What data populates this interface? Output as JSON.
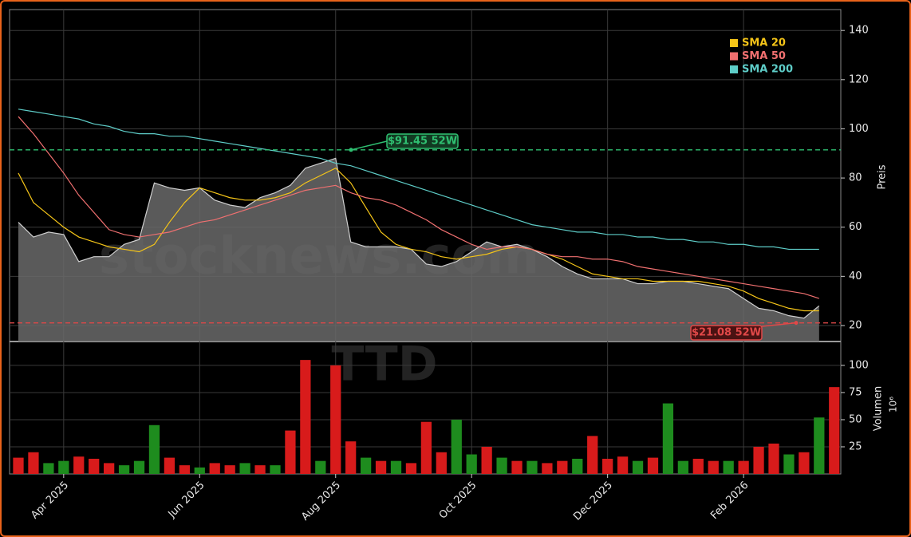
{
  "chart_data": {
    "type": "area",
    "categories": [
      null,
      null,
      null,
      "Apr 2025",
      null,
      null,
      null,
      null,
      null,
      null,
      null,
      null,
      "Jun 2025",
      null,
      null,
      null,
      null,
      null,
      null,
      null,
      null,
      "Aug 2025",
      null,
      null,
      null,
      null,
      null,
      null,
      null,
      null,
      "Oct 2025",
      null,
      null,
      null,
      null,
      null,
      null,
      null,
      null,
      "Dec 2025",
      null,
      null,
      null,
      null,
      null,
      null,
      null,
      null,
      "Feb 2026",
      null,
      null,
      null,
      null,
      null,
      null
    ],
    "values": [
      62,
      56,
      58,
      57,
      46,
      48,
      48,
      53,
      55,
      78,
      76,
      75,
      76,
      71,
      69,
      68,
      72,
      74,
      77,
      84,
      86,
      88,
      54,
      52,
      52,
      52,
      51,
      45,
      44,
      46,
      50,
      54,
      52,
      53,
      51,
      48,
      44,
      41,
      39,
      39,
      39,
      37,
      37,
      38,
      38,
      37,
      36,
      35,
      31,
      27,
      26,
      24,
      23,
      28,
      null
    ],
    "color": "#6a6a6a",
    "series": [
      {
        "name": "SMA 20",
        "color": "#f5c518",
        "values": [
          82,
          70,
          65,
          60,
          56,
          54,
          52,
          51,
          50,
          53,
          62,
          70,
          76,
          74,
          72,
          71,
          71,
          72,
          74,
          78,
          81,
          84,
          78,
          68,
          58,
          53,
          51,
          50,
          48,
          47,
          48,
          49,
          51,
          52,
          51,
          49,
          47,
          44,
          41,
          40,
          39,
          39,
          38,
          38,
          38,
          38,
          37,
          36,
          34,
          31,
          29,
          27,
          26,
          26,
          null
        ]
      },
      {
        "name": "SMA 50",
        "color": "#f07070",
        "values": [
          105,
          98,
          90,
          82,
          73,
          66,
          59,
          57,
          56,
          57,
          58,
          60,
          62,
          63,
          65,
          67,
          69,
          71,
          73,
          75,
          76,
          77,
          74,
          72,
          71,
          69,
          66,
          63,
          59,
          56,
          53,
          51,
          52,
          52,
          51,
          49,
          48,
          48,
          47,
          47,
          46,
          44,
          43,
          42,
          41,
          40,
          39,
          38,
          37,
          36,
          35,
          34,
          33,
          31,
          null
        ]
      },
      {
        "name": "SMA 200",
        "color": "#5ecdc8",
        "values": [
          108,
          107,
          106,
          105,
          104,
          102,
          101,
          99,
          98,
          98,
          97,
          97,
          96,
          95,
          94,
          93,
          92,
          91,
          90,
          89,
          88,
          86,
          85,
          83,
          81,
          79,
          77,
          75,
          73,
          71,
          69,
          67,
          65,
          63,
          61,
          60,
          59,
          58,
          58,
          57,
          57,
          56,
          56,
          55,
          55,
          54,
          54,
          53,
          53,
          52,
          52,
          51,
          51,
          51,
          null
        ]
      }
    ],
    "ylim": [
      13.5,
      148.5
    ],
    "yticks": [
      20,
      40,
      60,
      80,
      100,
      120,
      140
    ],
    "y_label": "Preis",
    "grid": true,
    "legend": "upper-right",
    "reference_lines": [
      {
        "value": 91.45,
        "label": "$91.45 52W",
        "color": "#2fbf71"
      },
      {
        "value": 21.08,
        "label": "$21.08 52W",
        "color": "#e04848"
      }
    ],
    "watermarks": [
      "stocknews.com",
      "TTD"
    ],
    "volume": {
      "values": [
        15,
        20,
        10,
        12,
        16,
        14,
        10,
        8,
        12,
        45,
        15,
        8,
        6,
        10,
        8,
        10,
        8,
        8,
        40,
        105,
        12,
        100,
        30,
        15,
        12,
        12,
        10,
        48,
        20,
        50,
        18,
        25,
        15,
        12,
        12,
        10,
        12,
        14,
        35,
        14,
        16,
        12,
        15,
        65,
        12,
        14,
        12,
        12,
        12,
        25,
        28,
        18,
        20,
        52,
        80
      ],
      "colors": [
        "#d81b1b",
        "#d81b1b",
        "#1e8c1e",
        "#1e8c1e",
        "#d81b1b",
        "#d81b1b",
        "#d81b1b",
        "#1e8c1e",
        "#1e8c1e",
        "#1e8c1e",
        "#d81b1b",
        "#d81b1b",
        "#1e8c1e",
        "#d81b1b",
        "#d81b1b",
        "#1e8c1e",
        "#d81b1b",
        "#1e8c1e",
        "#d81b1b",
        "#d81b1b",
        "#1e8c1e",
        "#d81b1b",
        "#d81b1b",
        "#1e8c1e",
        "#d81b1b",
        "#1e8c1e",
        "#d81b1b",
        "#d81b1b",
        "#d81b1b",
        "#1e8c1e",
        "#1e8c1e",
        "#d81b1b",
        "#1e8c1e",
        "#d81b1b",
        "#1e8c1e",
        "#d81b1b",
        "#d81b1b",
        "#1e8c1e",
        "#d81b1b",
        "#d81b1b",
        "#d81b1b",
        "#1e8c1e",
        "#d81b1b",
        "#1e8c1e",
        "#1e8c1e",
        "#d81b1b",
        "#d81b1b",
        "#1e8c1e",
        "#d81b1b",
        "#d81b1b",
        "#d81b1b",
        "#1e8c1e",
        "#d81b1b",
        "#1e8c1e",
        "#d81b1b"
      ],
      "ylim": [
        0,
        122
      ],
      "yticks": [
        25,
        50,
        75,
        100
      ],
      "y_label": "Volumen",
      "scale_label": "10⁶"
    }
  }
}
